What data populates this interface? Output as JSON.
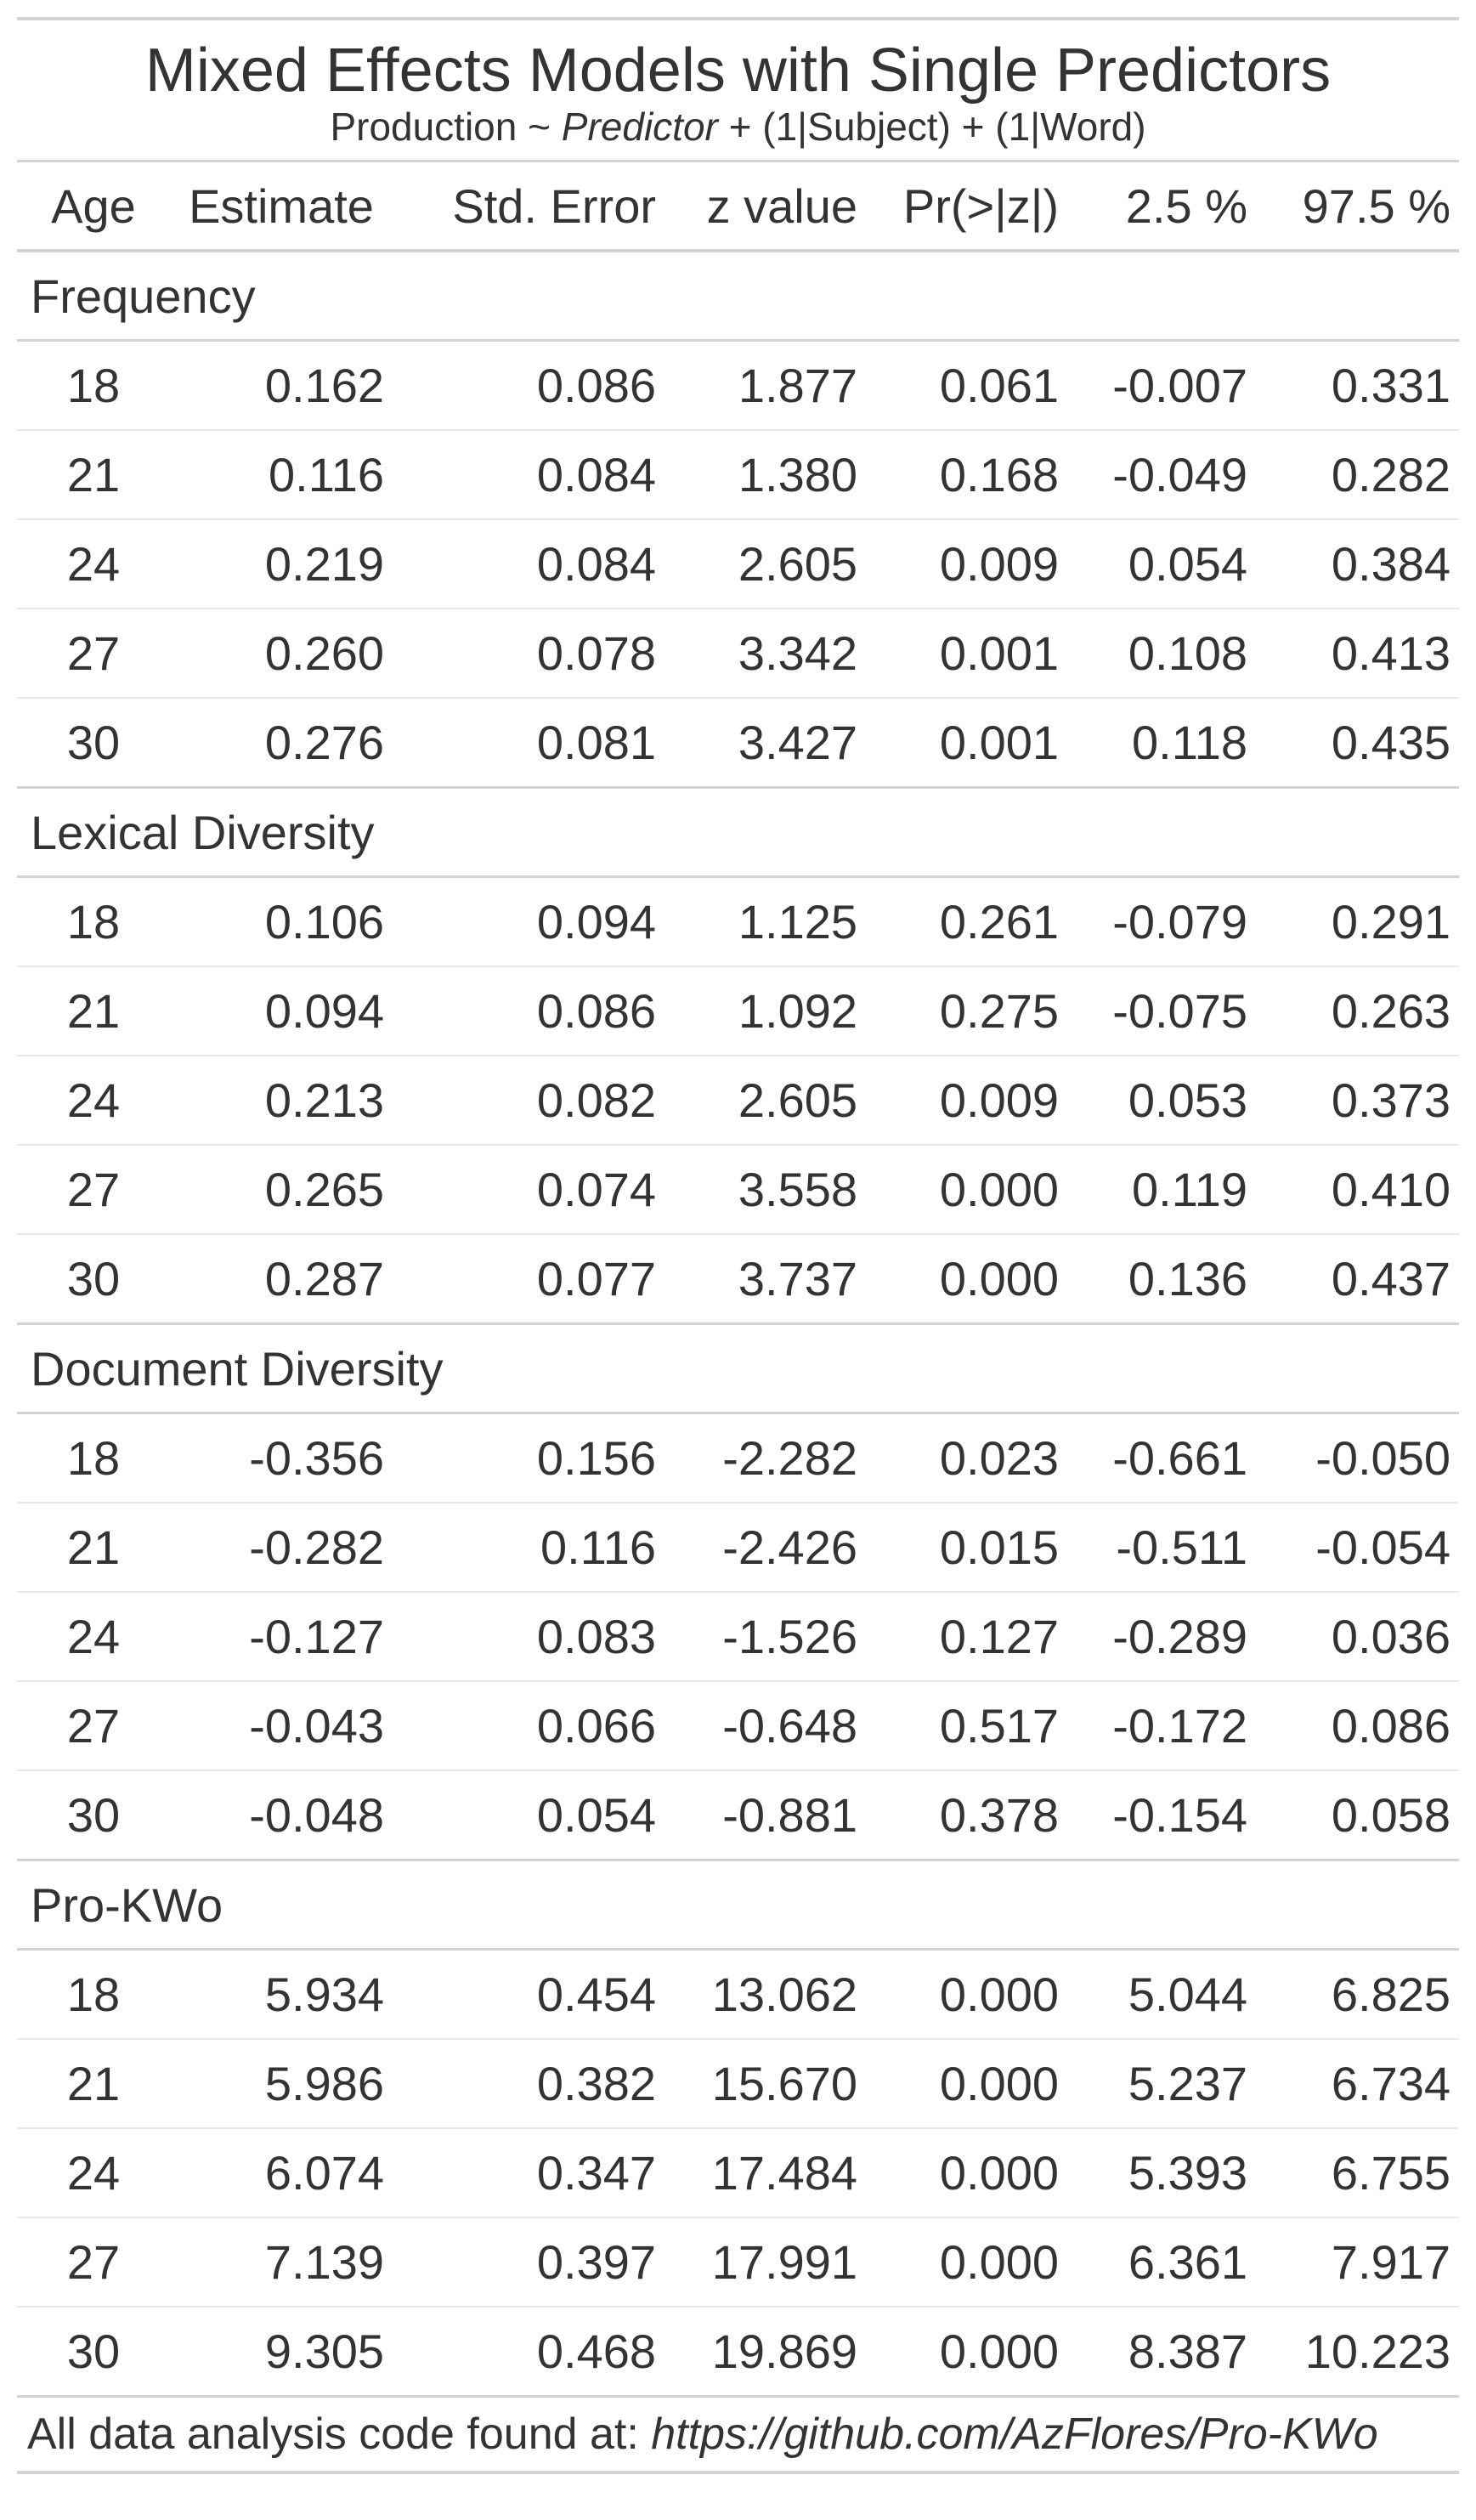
{
  "title": "Mixed Effects Models with Single Predictors",
  "subtitle": {
    "prefix": "Production ~ ",
    "predictor": "Predictor",
    "suffix": " + (1|Subject) + (1|Word)"
  },
  "columns": [
    "Age",
    "Estimate",
    "Std. Error",
    "z value",
    "Pr(>|z|)",
    "2.5 %",
    "97.5 %"
  ],
  "groups": [
    {
      "label": "Frequency",
      "rows": [
        [
          "18",
          "0.162",
          "0.086",
          "1.877",
          "0.061",
          "-0.007",
          "0.331"
        ],
        [
          "21",
          "0.116",
          "0.084",
          "1.380",
          "0.168",
          "-0.049",
          "0.282"
        ],
        [
          "24",
          "0.219",
          "0.084",
          "2.605",
          "0.009",
          "0.054",
          "0.384"
        ],
        [
          "27",
          "0.260",
          "0.078",
          "3.342",
          "0.001",
          "0.108",
          "0.413"
        ],
        [
          "30",
          "0.276",
          "0.081",
          "3.427",
          "0.001",
          "0.118",
          "0.435"
        ]
      ]
    },
    {
      "label": "Lexical Diversity",
      "rows": [
        [
          "18",
          "0.106",
          "0.094",
          "1.125",
          "0.261",
          "-0.079",
          "0.291"
        ],
        [
          "21",
          "0.094",
          "0.086",
          "1.092",
          "0.275",
          "-0.075",
          "0.263"
        ],
        [
          "24",
          "0.213",
          "0.082",
          "2.605",
          "0.009",
          "0.053",
          "0.373"
        ],
        [
          "27",
          "0.265",
          "0.074",
          "3.558",
          "0.000",
          "0.119",
          "0.410"
        ],
        [
          "30",
          "0.287",
          "0.077",
          "3.737",
          "0.000",
          "0.136",
          "0.437"
        ]
      ]
    },
    {
      "label": "Document Diversity",
      "rows": [
        [
          "18",
          "-0.356",
          "0.156",
          "-2.282",
          "0.023",
          "-0.661",
          "-0.050"
        ],
        [
          "21",
          "-0.282",
          "0.116",
          "-2.426",
          "0.015",
          "-0.511",
          "-0.054"
        ],
        [
          "24",
          "-0.127",
          "0.083",
          "-1.526",
          "0.127",
          "-0.289",
          "0.036"
        ],
        [
          "27",
          "-0.043",
          "0.066",
          "-0.648",
          "0.517",
          "-0.172",
          "0.086"
        ],
        [
          "30",
          "-0.048",
          "0.054",
          "-0.881",
          "0.378",
          "-0.154",
          "0.058"
        ]
      ]
    },
    {
      "label": "Pro-KWo",
      "rows": [
        [
          "18",
          "5.934",
          "0.454",
          "13.062",
          "0.000",
          "5.044",
          "6.825"
        ],
        [
          "21",
          "5.986",
          "0.382",
          "15.670",
          "0.000",
          "5.237",
          "6.734"
        ],
        [
          "24",
          "6.074",
          "0.347",
          "17.484",
          "0.000",
          "5.393",
          "6.755"
        ],
        [
          "27",
          "7.139",
          "0.397",
          "17.991",
          "0.000",
          "6.361",
          "7.917"
        ],
        [
          "30",
          "9.305",
          "0.468",
          "19.869",
          "0.000",
          "8.387",
          "10.223"
        ]
      ]
    }
  ],
  "footer": {
    "prefix": "All data analysis code found at: ",
    "url": "https://github.com/AzFlores/Pro-KWo"
  },
  "colors": {
    "text": "#333333",
    "rule": "#d3d3d3",
    "row_divider": "#e8e8e8",
    "background": "#ffffff"
  }
}
